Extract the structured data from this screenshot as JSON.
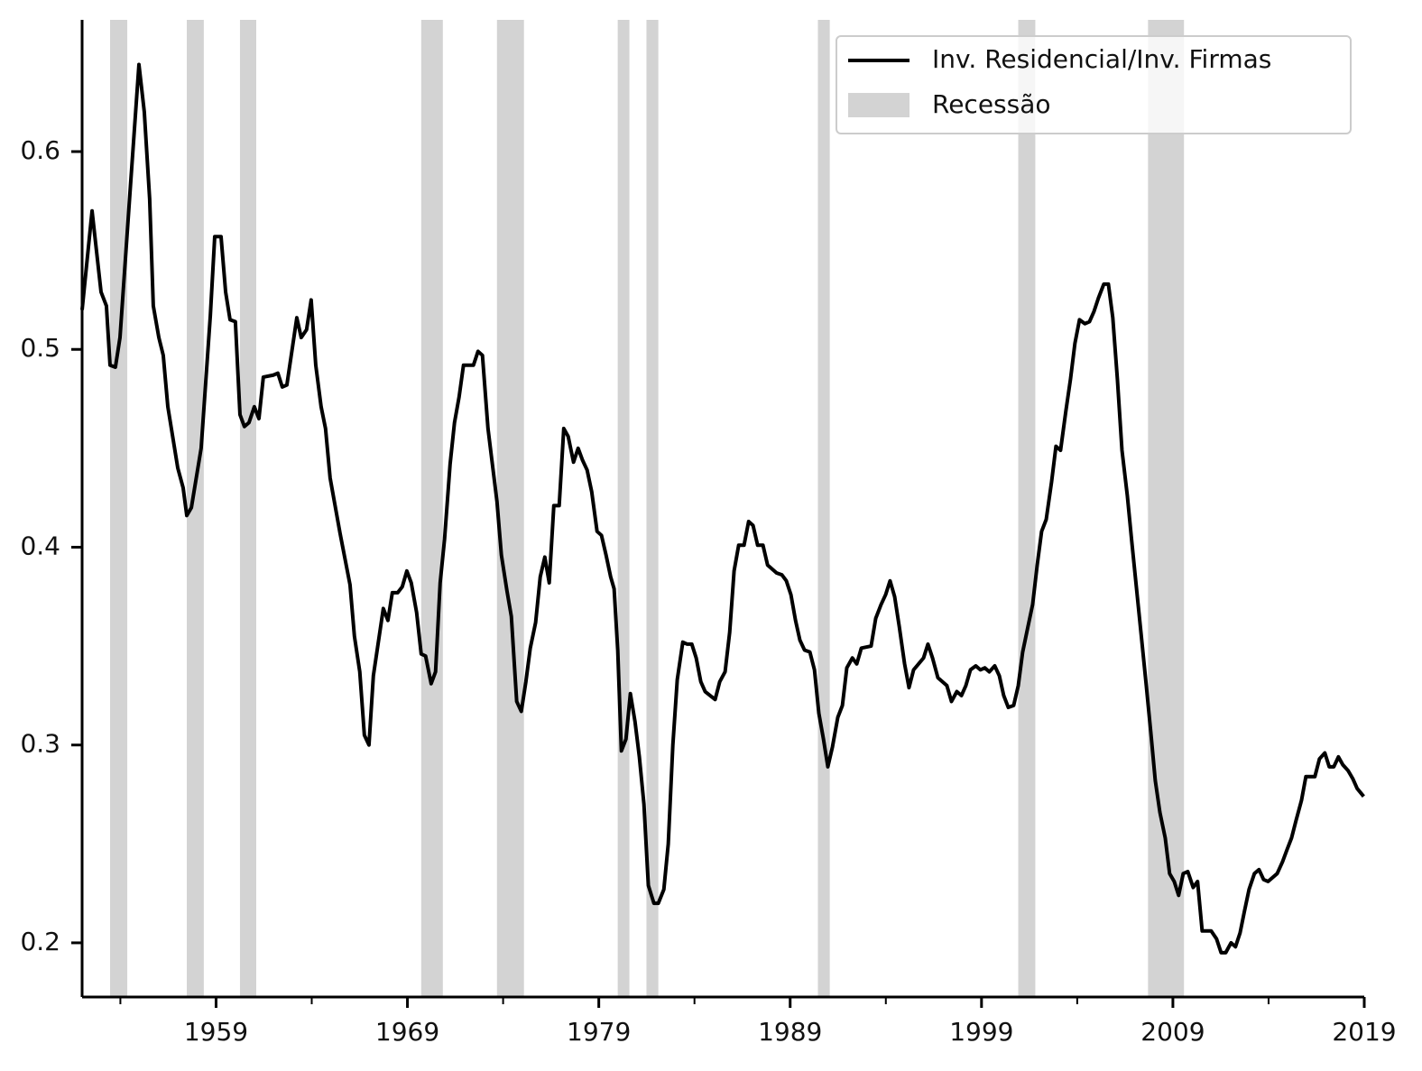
{
  "chart_data": {
    "type": "line",
    "x": [
      1952.0,
      1952.52,
      1952.99,
      1953.27,
      1953.46,
      1953.74,
      1953.98,
      1954.5,
      1954.97,
      1955.25,
      1955.53,
      1955.72,
      1956.01,
      1956.24,
      1956.48,
      1957.0,
      1957.28,
      1957.47,
      1957.71,
      1958.22,
      1958.7,
      1958.93,
      1959.26,
      1959.5,
      1959.73,
      1960.01,
      1960.25,
      1960.48,
      1960.72,
      1961.0,
      1961.24,
      1961.47,
      1961.99,
      1962.23,
      1962.46,
      1962.7,
      1963.22,
      1963.45,
      1963.73,
      1963.97,
      1964.21,
      1964.49,
      1964.72,
      1964.96,
      1965.48,
      1966.0,
      1966.23,
      1966.51,
      1966.75,
      1966.99,
      1967.22,
      1967.74,
      1967.98,
      1968.21,
      1968.49,
      1968.73,
      1968.97,
      1969.2,
      1969.48,
      1969.72,
      1969.95,
      1970.24,
      1970.47,
      1970.71,
      1970.94,
      1971.23,
      1971.46,
      1971.7,
      1971.93,
      1972.45,
      1972.69,
      1972.92,
      1973.21,
      1973.68,
      1973.91,
      1974.2,
      1974.43,
      1974.71,
      1974.95,
      1975.19,
      1975.42,
      1975.7,
      1975.94,
      1976.18,
      1976.41,
      1976.65,
      1976.93,
      1977.17,
      1977.4,
      1977.68,
      1977.92,
      1978.15,
      1978.39,
      1978.63,
      1978.91,
      1979.14,
      1979.38,
      1979.62,
      1979.8,
      1979.99,
      1980.18,
      1980.42,
      1980.65,
      1980.89,
      1981.12,
      1981.36,
      1981.59,
      1981.88,
      1982.11,
      1982.4,
      1982.63,
      1982.87,
      1983.1,
      1983.39,
      1983.62,
      1983.86,
      1984.09,
      1984.33,
      1984.56,
      1985.08,
      1985.32,
      1985.6,
      1985.84,
      1986.07,
      1986.31,
      1986.59,
      1986.83,
      1987.06,
      1987.3,
      1987.58,
      1987.82,
      1988.29,
      1988.57,
      1988.8,
      1989.04,
      1989.28,
      1989.51,
      1989.75,
      1990.03,
      1990.27,
      1990.5,
      1990.74,
      1990.97,
      1991.21,
      1991.49,
      1991.73,
      1991.96,
      1992.25,
      1992.48,
      1992.72,
      1993.23,
      1993.47,
      1993.75,
      1993.99,
      1994.22,
      1994.46,
      1994.7,
      1994.98,
      1995.21,
      1995.45,
      1995.97,
      1996.2,
      1996.44,
      1996.72,
      1997.19,
      1997.43,
      1997.71,
      1997.95,
      1998.18,
      1998.42,
      1998.7,
      1998.94,
      1999.17,
      1999.41,
      1999.69,
      1999.93,
      2000.16,
      2000.4,
      2000.68,
      2000.92,
      2001.15,
      2001.43,
      2001.67,
      2001.91,
      2002.14,
      2002.38,
      2002.66,
      2002.89,
      2003.13,
      2003.41,
      2003.65,
      2003.88,
      2004.12,
      2004.4,
      2004.64,
      2004.87,
      2005.11,
      2005.39,
      2005.63,
      2005.86,
      2006.1,
      2006.34,
      2006.62,
      2006.85,
      2007.09,
      2007.33,
      2007.61,
      2007.84,
      2008.08,
      2008.32,
      2008.6,
      2008.83,
      2009.07,
      2009.3,
      2009.54,
      2009.78,
      2010.06,
      2010.29,
      2010.53,
      2011.0,
      2011.28,
      2011.52,
      2011.76,
      2012.04,
      2012.27,
      2012.51,
      2012.74,
      2012.98,
      2013.26,
      2013.5,
      2013.74,
      2013.97,
      2014.45,
      2014.73,
      2014.96,
      2015.2,
      2015.44,
      2015.72,
      2015.95,
      2016.42,
      2016.66,
      2016.94,
      2017.17,
      2017.41,
      2017.65,
      2017.88,
      2018.16,
      2018.4,
      2018.63,
      2018.97
    ],
    "series": [
      {
        "name": "Inv. Residencial/Inv. Firmas",
        "color": "#000000",
        "values": [
          0.52,
          0.57,
          0.529,
          0.522,
          0.492,
          0.491,
          0.506,
          0.579,
          0.644,
          0.62,
          0.576,
          0.522,
          0.506,
          0.497,
          0.471,
          0.44,
          0.43,
          0.416,
          0.42,
          0.45,
          0.517,
          0.557,
          0.557,
          0.529,
          0.515,
          0.514,
          0.467,
          0.461,
          0.463,
          0.471,
          0.465,
          0.486,
          0.487,
          0.488,
          0.481,
          0.482,
          0.516,
          0.506,
          0.51,
          0.525,
          0.492,
          0.471,
          0.46,
          0.435,
          0.407,
          0.381,
          0.355,
          0.337,
          0.305,
          0.3,
          0.335,
          0.369,
          0.363,
          0.377,
          0.377,
          0.38,
          0.388,
          0.382,
          0.367,
          0.346,
          0.345,
          0.331,
          0.337,
          0.382,
          0.404,
          0.442,
          0.463,
          0.476,
          0.492,
          0.492,
          0.499,
          0.497,
          0.46,
          0.423,
          0.396,
          0.378,
          0.365,
          0.322,
          0.317,
          0.332,
          0.349,
          0.362,
          0.385,
          0.395,
          0.382,
          0.421,
          0.421,
          0.46,
          0.456,
          0.443,
          0.45,
          0.444,
          0.439,
          0.428,
          0.408,
          0.406,
          0.396,
          0.385,
          0.379,
          0.348,
          0.297,
          0.303,
          0.326,
          0.312,
          0.294,
          0.27,
          0.229,
          0.22,
          0.22,
          0.227,
          0.25,
          0.3,
          0.333,
          0.352,
          0.351,
          0.351,
          0.344,
          0.332,
          0.327,
          0.323,
          0.332,
          0.337,
          0.357,
          0.388,
          0.401,
          0.401,
          0.413,
          0.411,
          0.401,
          0.401,
          0.391,
          0.387,
          0.386,
          0.383,
          0.376,
          0.363,
          0.353,
          0.348,
          0.347,
          0.338,
          0.316,
          0.303,
          0.289,
          0.299,
          0.314,
          0.32,
          0.339,
          0.344,
          0.341,
          0.349,
          0.35,
          0.364,
          0.371,
          0.376,
          0.383,
          0.375,
          0.36,
          0.341,
          0.329,
          0.338,
          0.344,
          0.351,
          0.344,
          0.334,
          0.33,
          0.322,
          0.327,
          0.325,
          0.33,
          0.338,
          0.34,
          0.338,
          0.339,
          0.337,
          0.34,
          0.335,
          0.325,
          0.319,
          0.32,
          0.33,
          0.347,
          0.36,
          0.371,
          0.391,
          0.408,
          0.414,
          0.433,
          0.451,
          0.449,
          0.469,
          0.485,
          0.503,
          0.515,
          0.513,
          0.514,
          0.519,
          0.526,
          0.533,
          0.533,
          0.516,
          0.485,
          0.449,
          0.426,
          0.403,
          0.38,
          0.357,
          0.33,
          0.307,
          0.282,
          0.266,
          0.253,
          0.235,
          0.231,
          0.224,
          0.235,
          0.236,
          0.228,
          0.231,
          0.206,
          0.206,
          0.202,
          0.195,
          0.195,
          0.2,
          0.198,
          0.205,
          0.216,
          0.227,
          0.235,
          0.237,
          0.232,
          0.231,
          0.235,
          0.241,
          0.247,
          0.253,
          0.262,
          0.272,
          0.284,
          0.284,
          0.293,
          0.296,
          0.289,
          0.289,
          0.294,
          0.29,
          0.287,
          0.283,
          0.278,
          0.274
        ]
      }
    ],
    "shaded_regions": {
      "name": "Recessão",
      "color": "#d3d3d3",
      "ranges": [
        [
          1953.46,
          1954.36
        ],
        [
          1957.47,
          1958.36
        ],
        [
          1960.25,
          1961.1
        ],
        [
          1969.72,
          1970.85
        ],
        [
          1973.68,
          1975.09
        ],
        [
          1979.99,
          1980.6
        ],
        [
          1981.49,
          1982.11
        ],
        [
          1990.45,
          1991.07
        ],
        [
          2000.92,
          2001.81
        ],
        [
          2007.7,
          2009.58
        ]
      ]
    },
    "xlim": [
      1952,
      2019
    ],
    "xticks": [
      1959,
      1969,
      1979,
      1989,
      1999,
      2009,
      2019
    ],
    "xminorticks": [
      1954,
      1964,
      1974,
      1984,
      1994,
      2004,
      2014
    ],
    "ylim": [
      0.1726,
      0.6666
    ],
    "yticks": [
      0.2,
      0.3,
      0.4,
      0.5,
      0.6
    ],
    "legend": "upper right"
  }
}
